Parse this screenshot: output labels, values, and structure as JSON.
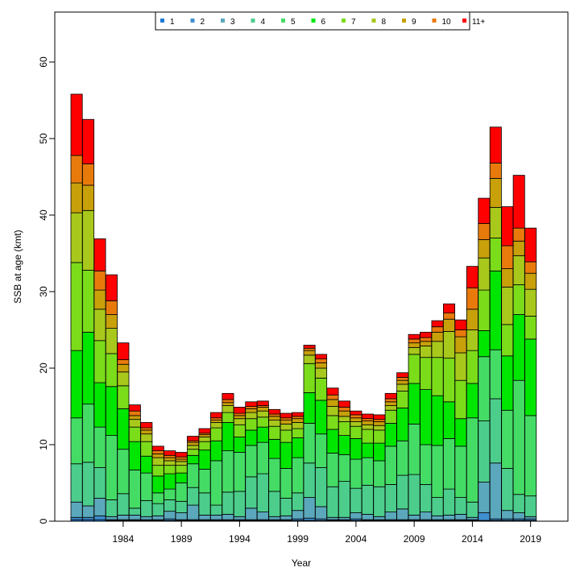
{
  "chart_data": {
    "type": "bar",
    "stacked": true,
    "title": "",
    "xlabel": "Year",
    "ylabel": "SSB at age (kmt)",
    "ylim": [
      0,
      65
    ],
    "yticks": [
      0,
      10,
      20,
      30,
      40,
      50,
      60
    ],
    "xtick_labels": [
      "1984",
      "1989",
      "1994",
      "1999",
      "2004",
      "2009",
      "2014",
      "2019"
    ],
    "grid": false,
    "legend_position": "top-center",
    "categories": [
      1980,
      1981,
      1982,
      1983,
      1984,
      1985,
      1986,
      1987,
      1988,
      1989,
      1990,
      1991,
      1992,
      1993,
      1994,
      1995,
      1996,
      1997,
      1998,
      1999,
      2000,
      2001,
      2002,
      2003,
      2004,
      2005,
      2006,
      2007,
      2008,
      2009,
      2010,
      2011,
      2012,
      2013,
      2014,
      2015,
      2016,
      2017,
      2018,
      2019
    ],
    "series": [
      {
        "name": "1",
        "color": "#1f78d4",
        "values": [
          0.2,
          0.2,
          0.2,
          0.1,
          0.1,
          0.1,
          0.1,
          0.1,
          0.1,
          0.1,
          0.1,
          0.1,
          0.1,
          0.1,
          0.1,
          0.1,
          0.1,
          0.1,
          0.1,
          0.1,
          0.1,
          0.1,
          0.1,
          0.1,
          0.1,
          0.1,
          0.1,
          0.1,
          0.1,
          0.1,
          0.1,
          0.1,
          0.1,
          0.1,
          0.1,
          0.1,
          0.1,
          0.1,
          0.1,
          0.1
        ]
      },
      {
        "name": "2",
        "color": "#3f8fd0",
        "values": [
          0.3,
          0.3,
          0.5,
          0.1,
          0.1,
          0.1,
          0.1,
          0.1,
          0.2,
          0.1,
          0.1,
          0.1,
          0.1,
          0.1,
          0.1,
          0.1,
          0.1,
          0.1,
          0.1,
          0.2,
          0.3,
          0.2,
          0.1,
          0.1,
          0.2,
          0.1,
          0.1,
          0.1,
          0.1,
          0.1,
          0.1,
          0.1,
          0.1,
          0.1,
          0.1,
          1.0,
          0.2,
          0.2,
          0.2,
          0.2
        ]
      },
      {
        "name": "3",
        "color": "#5ba8bc",
        "values": [
          2.0,
          1.5,
          2.3,
          0.4,
          0.6,
          0.6,
          0.4,
          0.5,
          1.0,
          0.9,
          1.9,
          0.6,
          0.6,
          0.7,
          0.4,
          1.5,
          1.0,
          0.4,
          0.5,
          1.1,
          2.7,
          1.6,
          0.3,
          0.3,
          0.8,
          0.7,
          0.4,
          1.0,
          1.4,
          0.6,
          1.0,
          0.5,
          0.6,
          0.7,
          0.3,
          4.0,
          7.3,
          1.1,
          0.8,
          0.3
        ]
      },
      {
        "name": "4",
        "color": "#4ccd8c",
        "values": [
          5.0,
          5.7,
          4.0,
          2.2,
          2.8,
          0.9,
          2.1,
          1.6,
          1.5,
          1.5,
          2.3,
          2.9,
          1.3,
          2.9,
          3.3,
          4.1,
          5.0,
          3.3,
          2.3,
          2.3,
          4.5,
          5.1,
          4.0,
          4.7,
          3.2,
          3.8,
          3.9,
          3.6,
          4.4,
          5.3,
          3.6,
          2.4,
          3.4,
          2.2,
          2.0,
          8.0,
          8.4,
          5.5,
          2.4,
          2.7
        ]
      },
      {
        "name": "5",
        "color": "#45dc66",
        "values": [
          6.0,
          7.6,
          5.3,
          8.4,
          5.8,
          5.0,
          3.6,
          1.4,
          1.4,
          2.4,
          3.1,
          3.1,
          5.8,
          5.4,
          5.1,
          4.1,
          4.1,
          4.3,
          3.9,
          4.6,
          5.2,
          4.4,
          4.4,
          3.5,
          3.8,
          3.6,
          3.4,
          5.0,
          4.5,
          6.6,
          5.2,
          6.8,
          6.6,
          6.7,
          11.0,
          8.4,
          6.4,
          7.6,
          14.9,
          10.5
        ]
      },
      {
        "name": "6",
        "color": "#00e600",
        "values": [
          8.8,
          9.4,
          5.8,
          6.4,
          5.3,
          3.7,
          2.2,
          2.2,
          2.0,
          1.3,
          1.1,
          2.5,
          2.6,
          3.7,
          2.0,
          2.0,
          2.0,
          2.5,
          3.4,
          2.6,
          4.0,
          4.4,
          3.1,
          2.5,
          2.7,
          1.9,
          2.3,
          3.0,
          4.3,
          5.3,
          7.2,
          6.5,
          4.8,
          3.6,
          4.5,
          3.4,
          10.3,
          7.1,
          8.6,
          10.0
        ]
      },
      {
        "name": "7",
        "color": "#7bdc1a",
        "values": [
          11.5,
          8.1,
          5.5,
          4.3,
          3.0,
          1.9,
          1.9,
          1.4,
          1.1,
          1.0,
          0.8,
          1.1,
          1.7,
          1.3,
          1.6,
          1.5,
          1.3,
          1.7,
          1.6,
          1.2,
          3.8,
          2.9,
          1.8,
          1.8,
          1.6,
          1.8,
          1.7,
          1.7,
          2.2,
          3.8,
          4.2,
          5.0,
          5.7,
          5.0,
          4.3,
          5.3,
          4.3,
          4.1,
          3.9,
          3.0
        ]
      },
      {
        "name": "8",
        "color": "#a8c81c",
        "values": [
          6.5,
          7.8,
          4.1,
          3.3,
          1.8,
          1.0,
          1.0,
          1.0,
          0.6,
          0.5,
          0.5,
          0.6,
          0.7,
          0.9,
          0.8,
          0.8,
          0.8,
          0.8,
          0.8,
          0.8,
          1.1,
          1.3,
          1.2,
          0.7,
          0.6,
          0.6,
          0.6,
          0.6,
          0.9,
          0.9,
          1.5,
          2.1,
          3.5,
          3.6,
          2.7,
          4.2,
          4.0,
          4.9,
          3.8,
          3.5
        ]
      },
      {
        "name": "9",
        "color": "#c8a00a",
        "values": [
          3.9,
          3.3,
          2.5,
          1.8,
          1.0,
          0.5,
          0.5,
          0.5,
          0.4,
          0.3,
          0.4,
          0.3,
          0.3,
          0.4,
          0.4,
          0.5,
          0.5,
          0.5,
          0.5,
          0.5,
          0.6,
          0.7,
          0.9,
          0.7,
          0.5,
          0.5,
          0.5,
          0.5,
          0.5,
          0.6,
          0.6,
          1.2,
          1.6,
          2.1,
          2.7,
          2.4,
          3.8,
          2.4,
          1.9,
          2.1
        ]
      },
      {
        "name": "10",
        "color": "#e87a0c",
        "values": [
          3.6,
          2.8,
          2.5,
          1.8,
          0.6,
          0.6,
          0.3,
          0.4,
          0.3,
          0.3,
          0.2,
          0.2,
          0.3,
          0.4,
          0.3,
          0.3,
          0.2,
          0.3,
          0.3,
          0.3,
          0.3,
          0.5,
          0.6,
          0.5,
          0.4,
          0.3,
          0.3,
          0.4,
          0.4,
          0.5,
          0.5,
          0.7,
          0.8,
          0.9,
          2.8,
          2.1,
          2.0,
          3.0,
          1.7,
          1.5
        ]
      },
      {
        "name": "11+",
        "color": "#ff0000",
        "values": [
          8.0,
          5.8,
          4.2,
          3.4,
          2.2,
          0.8,
          0.7,
          0.6,
          0.6,
          0.6,
          0.6,
          0.6,
          0.7,
          0.8,
          0.8,
          0.6,
          0.6,
          0.6,
          0.6,
          0.5,
          0.4,
          0.6,
          0.9,
          0.8,
          0.5,
          0.6,
          0.6,
          0.7,
          0.6,
          0.6,
          0.7,
          0.8,
          1.2,
          1.3,
          2.8,
          3.3,
          4.7,
          5.1,
          6.9,
          4.4
        ]
      }
    ]
  }
}
